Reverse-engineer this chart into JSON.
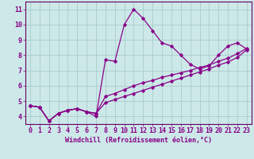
{
  "xlabel": "Windchill (Refroidissement éolien,°C)",
  "bg_color": "#cce8e8",
  "grid_color": "#aacccc",
  "line_color": "#880088",
  "spine_color": "#660066",
  "xlim": [
    -0.5,
    23.5
  ],
  "ylim": [
    3.5,
    11.5
  ],
  "xticks": [
    0,
    1,
    2,
    3,
    4,
    5,
    6,
    7,
    8,
    9,
    10,
    11,
    12,
    13,
    14,
    15,
    16,
    17,
    18,
    19,
    20,
    21,
    22,
    23
  ],
  "yticks": [
    4,
    5,
    6,
    7,
    8,
    9,
    10,
    11
  ],
  "series": [
    [
      4.7,
      4.6,
      3.7,
      4.2,
      4.4,
      4.5,
      4.3,
      4.0,
      7.7,
      7.6,
      10.0,
      11.0,
      10.4,
      9.6,
      8.8,
      8.6,
      8.0,
      7.4,
      7.1,
      7.3,
      8.0,
      8.6,
      8.8,
      8.4
    ],
    [
      4.7,
      4.6,
      3.7,
      4.2,
      4.4,
      4.5,
      4.3,
      4.2,
      5.3,
      5.5,
      5.75,
      6.0,
      6.2,
      6.35,
      6.55,
      6.7,
      6.85,
      7.0,
      7.2,
      7.35,
      7.6,
      7.8,
      8.1,
      8.45
    ],
    [
      4.7,
      4.6,
      3.7,
      4.2,
      4.4,
      4.5,
      4.3,
      4.2,
      4.9,
      5.1,
      5.3,
      5.5,
      5.7,
      5.9,
      6.1,
      6.3,
      6.5,
      6.7,
      6.9,
      7.1,
      7.35,
      7.55,
      7.85,
      8.35
    ]
  ],
  "xlabel_fontsize": 6,
  "tick_fontsize": 6
}
